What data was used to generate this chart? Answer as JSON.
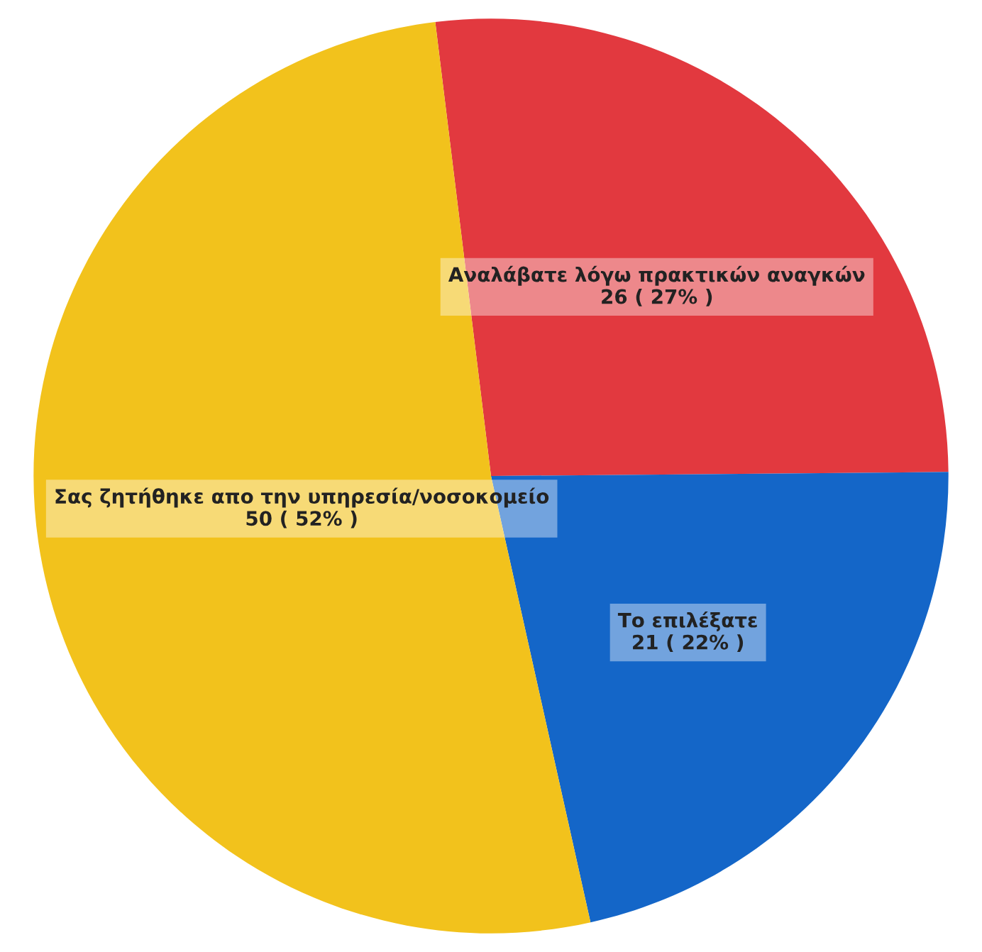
{
  "chart_data": {
    "type": "pie",
    "categories": [
      "Αναλάβατε λόγω πρακτικών αναγκών",
      "Το επιλέξατε",
      "Σας ζητήθηκε απο την υπηρεσία/νοσοκομείο"
    ],
    "values": [
      26,
      21,
      50
    ],
    "colors": [
      "#e2393f",
      "#1466c8",
      "#f2c21c"
    ],
    "value_labels": [
      "26 ( 27% )",
      "21 ( 22% )",
      "50 ( 52% )"
    ],
    "legend": false
  }
}
